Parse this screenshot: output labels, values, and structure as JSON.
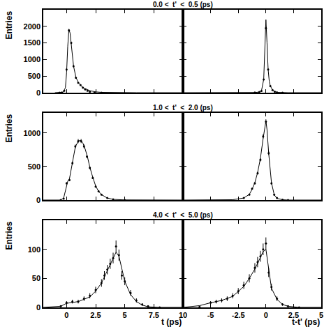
{
  "chart_data": [
    {
      "type": "scatter",
      "title": "0.0 <  t'  <  0.5 (ps)",
      "ylabel": "Entries",
      "color": "black",
      "grid": false,
      "tick_labels": "y",
      "xlim": [
        -2,
        10
      ],
      "xticks": [
        0,
        2.5,
        5,
        7.5,
        10
      ],
      "ylim": [
        0,
        2500
      ],
      "yticks": [
        0,
        500,
        1000,
        1500,
        2000
      ],
      "series": [
        {
          "type": "scatter",
          "marker": "circle",
          "x": [
            -0.6,
            -0.4,
            -0.2,
            0,
            0.2,
            0.4,
            0.6,
            0.8,
            1.0,
            1.2,
            1.4,
            1.6,
            1.8,
            2.0,
            2.4,
            3.0
          ],
          "values": [
            0,
            5,
            60,
            700,
            1880,
            1500,
            800,
            450,
            300,
            230,
            150,
            100,
            60,
            30,
            10,
            0
          ],
          "errors": [
            0,
            2,
            8,
            26,
            43,
            39,
            28,
            21,
            17,
            15,
            12,
            10,
            8,
            5,
            3,
            0
          ]
        },
        {
          "type": "line",
          "line_style": "solid",
          "x": [
            -1,
            -0.5,
            -0.3,
            -0.1,
            0,
            0.1,
            0.2,
            0.3,
            0.4,
            0.5,
            0.6,
            0.8,
            1.0,
            1.2,
            1.5,
            2.0,
            2.5,
            3,
            4,
            6,
            10
          ],
          "values": [
            0,
            2,
            15,
            150,
            600,
            1400,
            1900,
            1800,
            1450,
            1050,
            800,
            470,
            310,
            220,
            140,
            60,
            25,
            10,
            3,
            0,
            0
          ]
        }
      ]
    },
    {
      "type": "scatter",
      "color": "black",
      "grid": false,
      "tick_labels": false,
      "xlim": [
        -7.5,
        5
      ],
      "xticks": [
        -5,
        -2.5,
        0,
        2.5,
        5
      ],
      "ylim": [
        0,
        2500
      ],
      "yticks": [
        0,
        500,
        1000,
        1500,
        2000
      ],
      "series": [
        {
          "type": "scatter",
          "marker": "circle",
          "x": [
            -1.0,
            -0.6,
            -0.4,
            -0.2,
            0,
            0.2,
            0.4,
            0.6,
            0.8,
            1.0,
            1.5
          ],
          "values": [
            5,
            20,
            50,
            400,
            1950,
            700,
            200,
            80,
            30,
            10,
            0
          ],
          "errors": [
            2,
            4,
            7,
            20,
            44,
            26,
            14,
            9,
            5,
            3,
            0
          ]
        },
        {
          "type": "line",
          "line_style": "solid",
          "x": [
            -7.5,
            -2,
            -1,
            -0.6,
            -0.4,
            -0.2,
            -0.1,
            0,
            0.1,
            0.2,
            0.3,
            0.4,
            0.6,
            0.8,
            1.0,
            1.5,
            2,
            5
          ],
          "values": [
            0,
            0,
            5,
            20,
            60,
            400,
            1200,
            2200,
            1500,
            700,
            350,
            200,
            80,
            30,
            10,
            2,
            0,
            0
          ]
        }
      ]
    },
    {
      "type": "scatter",
      "title": "1.0 <  t'  <  2.0 (ps)",
      "ylabel": "Entries",
      "color": "black",
      "grid": false,
      "tick_labels": "y",
      "xlim": [
        -2,
        10
      ],
      "xticks": [
        0,
        2.5,
        5,
        7.5,
        10
      ],
      "ylim": [
        0,
        1300
      ],
      "yticks": [
        0,
        500,
        1000
      ],
      "series": [
        {
          "type": "scatter",
          "marker": "circle",
          "x": [
            -0.5,
            -0.25,
            0,
            0.25,
            0.5,
            0.75,
            1.0,
            1.25,
            1.5,
            1.75,
            2.0,
            2.25,
            2.5,
            2.75,
            3.0,
            3.5,
            4.0,
            5.0
          ],
          "values": [
            0,
            20,
            250,
            300,
            550,
            800,
            880,
            880,
            800,
            650,
            480,
            330,
            200,
            130,
            80,
            30,
            10,
            0
          ],
          "errors": [
            0,
            4,
            16,
            17,
            23,
            28,
            30,
            30,
            28,
            25,
            22,
            18,
            14,
            11,
            9,
            5,
            3,
            0
          ]
        },
        {
          "type": "line",
          "line_style": "solid",
          "x": [
            -2,
            -0.5,
            -0.25,
            0,
            0.1,
            0.25,
            0.5,
            0.75,
            1.0,
            1.2,
            1.4,
            1.6,
            1.8,
            2.0,
            2.25,
            2.5,
            2.75,
            3.0,
            3.5,
            4,
            5,
            10
          ],
          "values": [
            0,
            0,
            30,
            230,
            280,
            320,
            540,
            790,
            880,
            890,
            850,
            760,
            640,
            490,
            340,
            210,
            130,
            80,
            30,
            10,
            2,
            0
          ]
        }
      ]
    },
    {
      "type": "scatter",
      "color": "black",
      "grid": false,
      "tick_labels": false,
      "xlim": [
        -7.5,
        5
      ],
      "xticks": [
        -5,
        -2.5,
        0,
        2.5,
        5
      ],
      "ylim": [
        0,
        1300
      ],
      "yticks": [
        0,
        500,
        1000
      ],
      "series": [
        {
          "type": "scatter",
          "marker": "circle",
          "x": [
            -2,
            -1.5,
            -1.25,
            -1.0,
            -0.75,
            -0.5,
            -0.25,
            0,
            0.25,
            0.5,
            0.75,
            1.0,
            1.5,
            2
          ],
          "values": [
            30,
            80,
            170,
            250,
            400,
            600,
            950,
            1170,
            700,
            250,
            80,
            30,
            5,
            0
          ],
          "errors": [
            5,
            9,
            13,
            16,
            20,
            24,
            31,
            34,
            26,
            16,
            9,
            5,
            2,
            0
          ]
        },
        {
          "type": "line",
          "line_style": "solid",
          "x": [
            -7.5,
            -3,
            -2,
            -1.5,
            -1.25,
            -1,
            -0.75,
            -0.5,
            -0.25,
            0,
            0.1,
            0.25,
            0.5,
            0.75,
            1.0,
            1.5,
            2,
            5
          ],
          "values": [
            0,
            5,
            30,
            85,
            160,
            260,
            410,
            620,
            920,
            1180,
            1050,
            700,
            260,
            80,
            25,
            5,
            0,
            0
          ]
        }
      ]
    },
    {
      "type": "scatter",
      "title": "4.0 <  t'  <  5.0 (ps)",
      "ylabel": "Entries",
      "xlabel": "t (ps)",
      "color": "black",
      "grid": false,
      "xlim": [
        -2,
        10
      ],
      "xticks": [
        0,
        2.5,
        5,
        7.5,
        10
      ],
      "ylim": [
        0,
        150
      ],
      "yticks": [
        0,
        50,
        100
      ],
      "series": [
        {
          "type": "scatter",
          "marker": "circle",
          "x": [
            -0.5,
            0,
            0.5,
            1,
            1.5,
            2,
            2.5,
            3,
            3.25,
            3.5,
            3.75,
            4,
            4.25,
            4.5,
            4.75,
            5,
            5.5,
            6,
            6.5,
            7,
            8
          ],
          "values": [
            2,
            8,
            10,
            10,
            15,
            20,
            30,
            42,
            55,
            65,
            75,
            85,
            105,
            90,
            55,
            45,
            25,
            12,
            5,
            2,
            0
          ],
          "errors": [
            1.4,
            2.8,
            3.2,
            3.2,
            3.9,
            4.5,
            5.5,
            6.5,
            7.4,
            8.1,
            8.7,
            9.2,
            10.2,
            9.5,
            7.4,
            6.7,
            5,
            3.5,
            2.2,
            1.4,
            0
          ]
        },
        {
          "type": "line",
          "line_style": "solid",
          "x": [
            -2,
            -0.5,
            0,
            1,
            2,
            2.5,
            3,
            3.5,
            3.75,
            4,
            4.25,
            4.5,
            4.75,
            5,
            5.5,
            6,
            6.5,
            7,
            8,
            10
          ],
          "values": [
            0,
            2,
            7,
            10,
            18,
            28,
            42,
            63,
            74,
            86,
            95,
            88,
            65,
            45,
            22,
            10,
            4,
            1,
            0,
            0
          ]
        }
      ]
    },
    {
      "type": "scatter",
      "xlabel": "t-t' (ps)",
      "color": "black",
      "grid": false,
      "tick_labels": "x",
      "xlim": [
        -7.5,
        5
      ],
      "xticks": [
        -5,
        -2.5,
        0,
        2.5,
        5
      ],
      "ylim": [
        0,
        150
      ],
      "yticks": [
        0,
        50,
        100
      ],
      "series": [
        {
          "type": "scatter",
          "marker": "circle",
          "x": [
            -6,
            -5,
            -4.5,
            -4,
            -3.5,
            -3,
            -2.5,
            -2,
            -1.5,
            -1,
            -0.75,
            -0.5,
            -0.25,
            0,
            0.25,
            0.5,
            1,
            1.5,
            2,
            3
          ],
          "values": [
            1,
            8,
            10,
            12,
            15,
            20,
            28,
            38,
            50,
            68,
            78,
            88,
            100,
            110,
            60,
            35,
            15,
            5,
            2,
            0
          ],
          "errors": [
            1,
            2.8,
            3.2,
            3.5,
            3.9,
            4.5,
            5.3,
            6.2,
            7.1,
            8.2,
            8.8,
            9.4,
            10,
            10.5,
            7.7,
            5.9,
            3.9,
            2.2,
            1.4,
            0
          ]
        },
        {
          "type": "line",
          "line_style": "solid",
          "x": [
            -7.5,
            -6,
            -5,
            -4,
            -3,
            -2,
            -1.5,
            -1,
            -0.5,
            -0.25,
            0,
            0.15,
            0.3,
            0.5,
            1,
            1.5,
            2,
            3,
            5
          ],
          "values": [
            0,
            3,
            8,
            12,
            19,
            36,
            50,
            66,
            86,
            96,
            100,
            80,
            55,
            33,
            14,
            5,
            2,
            0,
            0
          ]
        }
      ]
    }
  ]
}
